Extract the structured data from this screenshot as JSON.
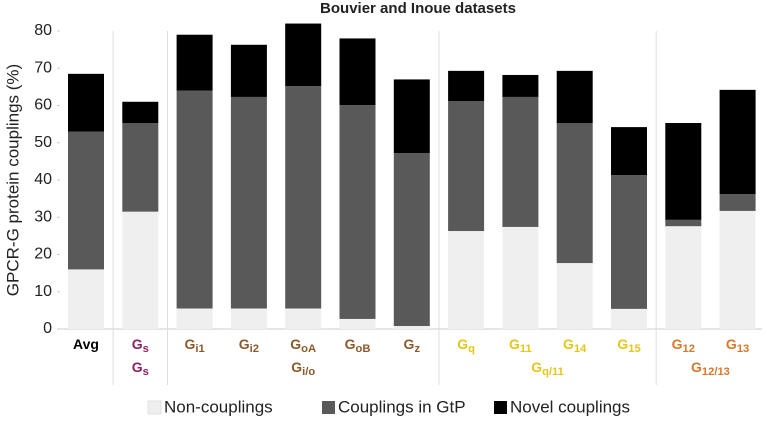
{
  "chart_data": {
    "type": "stacked_bar",
    "title": "Bouvier and Inoue datasets",
    "y_label": "GPCR-G protein couplings (%)",
    "categories": [
      [
        "Avg"
      ],
      [
        "G",
        "s"
      ],
      [
        "G",
        "i1"
      ],
      [
        "G",
        "i2"
      ],
      [
        "G",
        "oA"
      ],
      [
        "G",
        "oB"
      ],
      [
        "G",
        "z"
      ],
      [
        "G",
        "q"
      ],
      [
        "G",
        "11"
      ],
      [
        "G",
        "14"
      ],
      [
        "G",
        "15"
      ],
      [
        "G",
        "12"
      ],
      [
        "G",
        "13"
      ]
    ],
    "category_colors": [
      "#000000",
      "#8e1f63",
      "#8b5a2b",
      "#8b5a2b",
      "#8b5a2b",
      "#8b5a2b",
      "#8b5a2b",
      "#e6c619",
      "#e6c619",
      "#e6c619",
      "#e6c619",
      "#d9772b",
      "#d9772b"
    ],
    "groups": [
      {
        "label": [
          "G",
          "s"
        ],
        "first": 1,
        "last": 1,
        "color": "#8e1f63"
      },
      {
        "label": [
          "G",
          "i/o"
        ],
        "first": 2,
        "last": 6,
        "color": "#8b5a2b"
      },
      {
        "label": [
          "G",
          "q/11"
        ],
        "first": 7,
        "last": 10,
        "color": "#e6c619"
      },
      {
        "label": [
          "G",
          "12/13"
        ],
        "first": 11,
        "last": 12,
        "color": "#d9772b"
      }
    ],
    "series": [
      {
        "name": "Non-couplings",
        "color": "#efefef",
        "values": [
          16,
          31.5,
          5.5,
          5.5,
          5.5,
          2.7,
          0.8,
          26.3,
          27.4,
          17.7,
          5.4,
          27.6,
          31.7
        ]
      },
      {
        "name": "Couplings in GtP",
        "color": "#595959",
        "values": [
          37,
          23.8,
          58.5,
          56.8,
          59.7,
          57.4,
          46.4,
          34.9,
          34.9,
          37.6,
          35.9,
          1.7,
          4.5
        ]
      },
      {
        "name": "Novel couplings",
        "color": "#000000",
        "values": [
          15.5,
          5.7,
          15,
          14,
          16.8,
          17.9,
          19.8,
          8.1,
          5.9,
          14,
          12.9,
          26,
          28
        ]
      }
    ],
    "ylim": [
      0,
      80
    ],
    "yticks": [
      0,
      10,
      20,
      30,
      40,
      50,
      60,
      70,
      80
    ],
    "grid": false
  }
}
